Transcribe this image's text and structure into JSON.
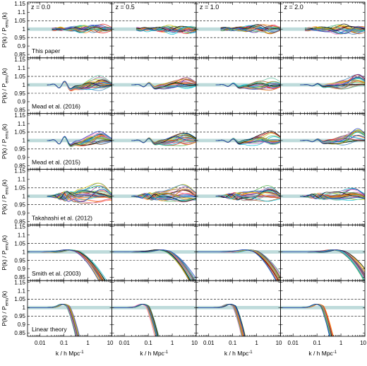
{
  "chart_data": {
    "type": "line",
    "layout": "grid of panels, 6 rows by 4 columns",
    "redshift_labels": [
      "z = 0.0",
      "z = 0.5",
      "z = 1.0",
      "z = 2.0"
    ],
    "row_labels": [
      "This paper",
      "Mead et al. (2016)",
      "Mead et al. (2015)",
      "Takahashi et al. (2012)",
      "Smith et al. (2003)",
      "Linear theory"
    ],
    "ylabel_main": "P(k) / P",
    "ylabel_sub": "emu",
    "ylabel_tail": "(k)",
    "xlabel_main": "k / h Mpc",
    "xlabel_sup": "-1",
    "x_scale": "log",
    "xlim": [
      0.003,
      10
    ],
    "x_ticks": [
      0.01,
      0.1,
      1,
      10
    ],
    "x_tick_labels": [
      "0.01",
      "0.1",
      "1",
      "10"
    ],
    "ylim": [
      0.83,
      1.16
    ],
    "y_ticks": [
      0.85,
      0.9,
      0.95,
      1.0,
      1.05,
      1.1,
      1.15
    ],
    "y_tick_labels": [
      "0.85",
      "0.9",
      "0.95",
      "1",
      "1.05",
      "1.1",
      "1.15"
    ],
    "reference_lines": [
      0.95,
      1.05
    ],
    "band": [
      0.99,
      1.01
    ],
    "band_color": "#a8cfcf",
    "n_models_per_panel": 24,
    "series_colors": [
      "#e41a1c",
      "#377eb8",
      "#4daf4a",
      "#984ea3",
      "#ff7f00",
      "#d4c400",
      "#a65628",
      "#f781bf",
      "#00bcd4",
      "#000000",
      "#66c2a5",
      "#1f3fbf"
    ],
    "model_shapes": [
      {
        "row": "This paper",
        "ratio_range": [
          0.96,
          1.04
        ],
        "behaviour": "scatter within about 4% around 1 for k > 0.05"
      },
      {
        "row": "Mead et al. (2016)",
        "ratio_range": [
          0.93,
          1.07
        ],
        "behaviour": "oscillation near k ~ 0.1 to 1, spread up to 7% at k ~ 5"
      },
      {
        "row": "Mead et al. (2015)",
        "ratio_range": [
          0.93,
          1.08
        ],
        "behaviour": "oscillation near k ~ 0.1 to 1, spread up to 8% at k ~ 5"
      },
      {
        "row": "Takahashi et al. (2012)",
        "ratio_range": [
          0.87,
          1.12
        ],
        "behaviour": "large scatter up to about 10% for k > 0.2"
      },
      {
        "row": "Smith et al. (2003)",
        "ratio_range": [
          0.83,
          1.02
        ],
        "behaviour": "drops below 0.85 for k above about 1"
      },
      {
        "row": "Linear theory",
        "ratio_range": [
          0.83,
          1.03
        ],
        "behaviour": "steep drop starting near k ~ 0.2"
      }
    ]
  }
}
